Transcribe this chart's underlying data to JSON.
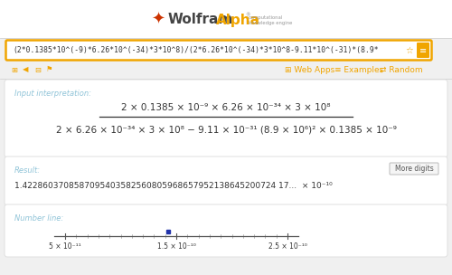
{
  "bg_color": "#f0f0f0",
  "header_bg": "#ffffff",
  "search_text": "(2*0.1385*10^(-9)*6.26*10^(-34)*3*10^8)/(2*6.26*10^(-34)*3*10^8-9.11*10^(-31)*(8.9*",
  "search_bg": "#ffffff",
  "search_border": "#f0a500",
  "section_label_color": "#90c4d8",
  "input_label": "Input interpretation:",
  "numerator": "2 × 0.1385 × 10⁻⁹ × 6.26 × 10⁻³⁴ × 3 × 10⁸",
  "denominator": "2 × 6.26 × 10⁻³⁴ × 3 × 10⁸ − 9.11 × 10⁻³¹ (8.9 × 10⁶)² × 0.1385 × 10⁻⁹",
  "result_label": "Result:",
  "result_full": "1.4228603708587095403582560805968657952138645200724 17...  × 10⁻¹⁰",
  "more_digits_label": "More digits",
  "numberline_label": "Number line:",
  "nl_ticks": [
    "5 × 10⁻¹¹",
    "1.5 × 10⁻¹⁰",
    "2.5 × 10⁻¹⁰"
  ],
  "section_card_bg": "#ffffff",
  "section_card_border": "#e0e0e0",
  "orange_color": "#f0a500",
  "text_dark": "#333333",
  "logo_wolfram_color": "#555555",
  "logo_alpha_color": "#f0a500"
}
